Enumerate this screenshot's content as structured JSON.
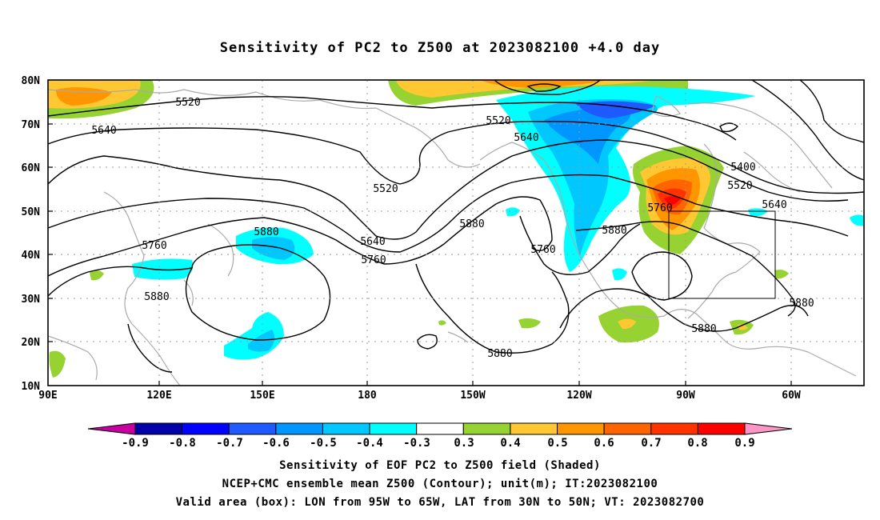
{
  "title": "Sensitivity of PC2 to Z500 at 2023082100 +4.0 day",
  "map": {
    "lat_range": [
      10,
      80
    ],
    "lon_range_east": [
      90,
      310
    ],
    "lat_ticks": [
      "10N",
      "20N",
      "30N",
      "40N",
      "50N",
      "60N",
      "70N",
      "80N"
    ],
    "lon_ticks": [
      "90E",
      "120E",
      "150E",
      "180",
      "150W",
      "120W",
      "90W",
      "60W"
    ],
    "valid_box": {
      "lon_west": -95,
      "lon_east": -65,
      "lat_south": 30,
      "lat_north": 50
    },
    "contour_labels": [
      "5520",
      "5640",
      "5520",
      "5640",
      "5520",
      "5400",
      "5520",
      "5640",
      "5760",
      "5880",
      "5640",
      "5760",
      "5880",
      "5760",
      "5880",
      "5760",
      "5880",
      "5880",
      "5880",
      "5880"
    ]
  },
  "colorbar": {
    "labels": [
      "-0.9",
      "-0.8",
      "-0.7",
      "-0.6",
      "-0.5",
      "-0.4",
      "-0.3",
      "0.3",
      "0.4",
      "0.5",
      "0.6",
      "0.7",
      "0.8",
      "0.9"
    ],
    "colors": [
      "#0000a8",
      "#0000ff",
      "#1e5aff",
      "#0096ff",
      "#00c8ff",
      "#00ffff",
      "#ffffff",
      "#96d232",
      "#ffc832",
      "#ff9600",
      "#ff6400",
      "#ff3200",
      "#ff0000"
    ],
    "low_arrow_color": "#c800a0",
    "high_arrow_color": "#ff96c8"
  },
  "captions": {
    "line1": "Sensitivity of EOF PC2 to Z500 field (Shaded)",
    "line2": "NCEP+CMC ensemble mean Z500 (Contour); unit(m); IT:2023082100",
    "line3": "Valid area (box): LON from 95W to 65W, LAT from 30N to 50N; VT: 2023082700"
  }
}
